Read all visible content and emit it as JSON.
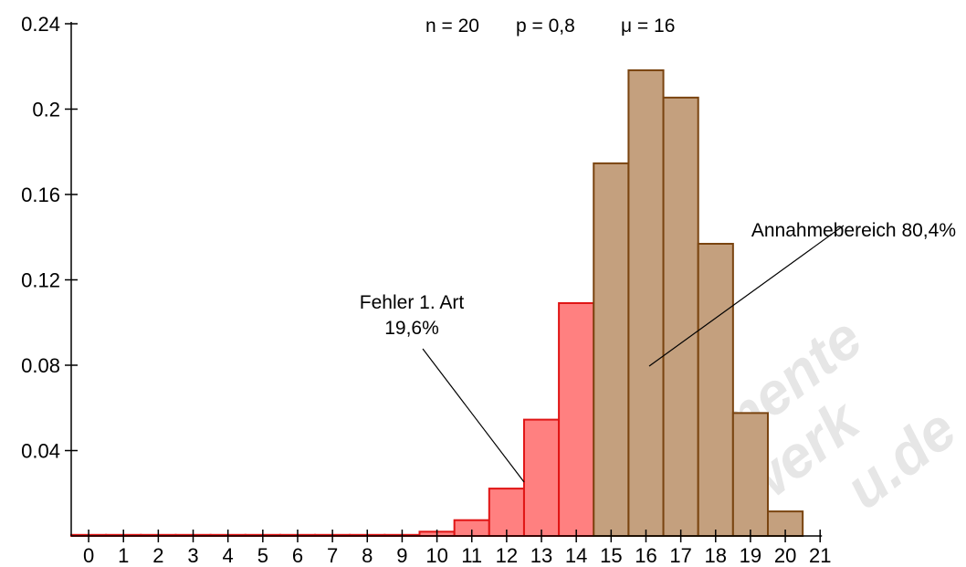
{
  "header": {
    "n_text": "n = 20",
    "p_text": "p = 0,8",
    "mu_text": "μ = 16"
  },
  "annotations": {
    "fehler_line1": "Fehler 1. Art",
    "fehler_line2": "19,6%",
    "annahme": "Annahmebereich 80,4%"
  },
  "watermark": {
    "line1": "mente",
    "line2": "werk",
    "line3": "u.de"
  },
  "colors": {
    "rejection_fill": "#ff8080",
    "rejection_stroke": "#e01414",
    "acceptance_fill": "#c4a07e",
    "acceptance_stroke": "#7a4410",
    "axis": "#000000"
  },
  "chart_data": {
    "type": "bar",
    "x": [
      0,
      1,
      2,
      3,
      4,
      5,
      6,
      7,
      8,
      9,
      10,
      11,
      12,
      13,
      14,
      15,
      16,
      17,
      18,
      19,
      20
    ],
    "values": [
      0.0,
      0.0,
      0.0,
      0.0,
      0.0,
      0.0,
      0.0,
      0.0,
      0.0,
      0.0,
      0.002,
      0.0074,
      0.0222,
      0.0545,
      0.1091,
      0.1746,
      0.2182,
      0.2054,
      0.1369,
      0.0576,
      0.0115
    ],
    "rejection_region": [
      0,
      14
    ],
    "acceptance_region": [
      15,
      20
    ],
    "x_ticks": [
      0,
      1,
      2,
      3,
      4,
      5,
      6,
      7,
      8,
      9,
      10,
      11,
      12,
      13,
      14,
      15,
      16,
      17,
      18,
      19,
      20,
      21
    ],
    "y_ticks": [
      0.04,
      0.08,
      0.12,
      0.16,
      0.2,
      0.24
    ],
    "y_tick_labels": [
      "0.04",
      "0.08",
      "0.12",
      "0.16",
      "0.2",
      "0.24"
    ],
    "xlim": [
      -0.5,
      21
    ],
    "ylim": [
      0,
      0.24
    ],
    "title": "",
    "xlabel": "",
    "ylabel": ""
  }
}
